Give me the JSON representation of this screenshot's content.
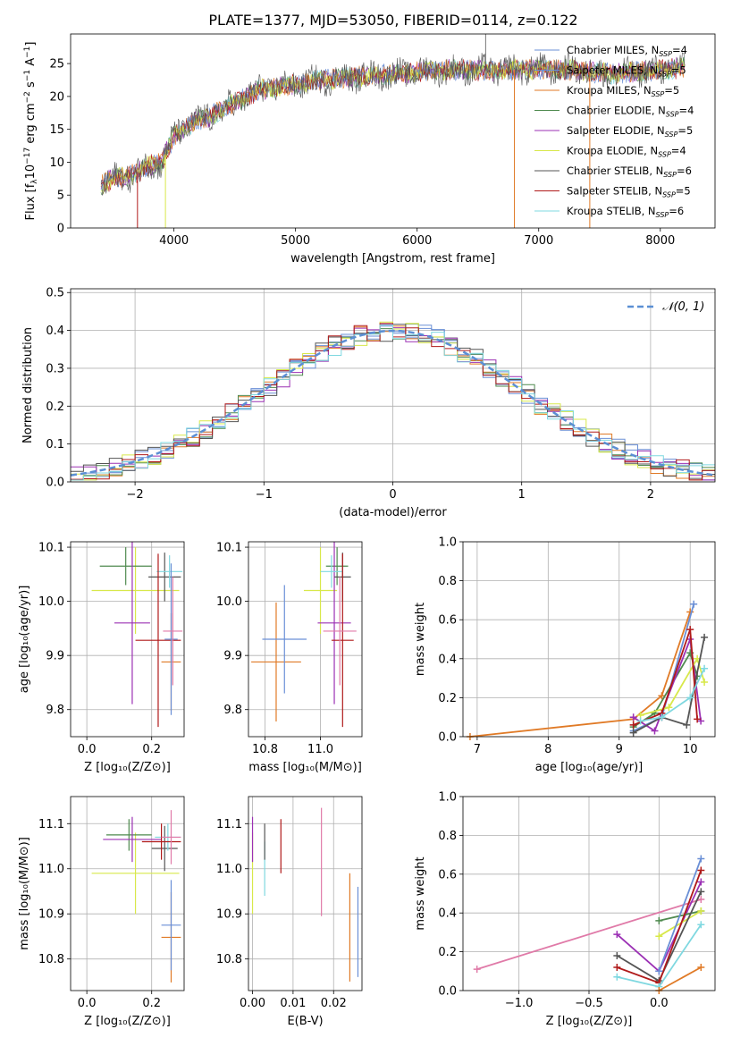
{
  "title": "PLATE=1377, MJD=53050, FIBERID=0114, z=0.122",
  "colors": {
    "Chabrier MILES": "#6a8fd6",
    "Salpeter MILES": "#6a8fd6",
    "Kroupa MILES": "#e07a26",
    "Chabrier ELODIE": "#4f8a4f",
    "Salpeter ELODIE": "#9b30b4",
    "Kroupa ELODIE": "#d8e84a",
    "Chabrier STELIB": "#555555",
    "Salpeter STELIB": "#b01a1a",
    "Kroupa STELIB": "#7fd8e0",
    "normal": "#5b8fd4",
    "pink": "#e07aa8",
    "grid": "#b0b0b0"
  },
  "chart_data": [
    {
      "type": "line",
      "id": "spectrum",
      "title": "PLATE=1377, MJD=53050, FIBERID=0114, z=0.122",
      "xlabel": "wavelength [Angstrom, rest frame]",
      "ylabel": "Flux [f_λ10^-17 erg cm^-2 s^-1 A^-1]",
      "ylabel_parts": [
        "Flux [f",
        "λ",
        "10",
        "−17",
        " erg cm",
        "−2",
        " s",
        "−1",
        " A",
        "−1",
        "]"
      ],
      "xlim": [
        3150,
        8450
      ],
      "ylim": [
        0,
        29.5
      ],
      "xticks": [
        4000,
        5000,
        6000,
        7000,
        8000
      ],
      "yticks": [
        0,
        5,
        10,
        15,
        20,
        25
      ],
      "grid": false,
      "legend_position": "top-right",
      "legend": [
        {
          "label": "Chabrier MILES, N",
          "sub": "SSP",
          "eq": "=4"
        },
        {
          "label": "Salpeter MILES, N",
          "sub": "SSP",
          "eq": "=5"
        },
        {
          "label": "Kroupa MILES, N",
          "sub": "SSP",
          "eq": "=5"
        },
        {
          "label": "Chabrier ELODIE, N",
          "sub": "SSP",
          "eq": "=4"
        },
        {
          "label": "Salpeter ELODIE, N",
          "sub": "SSP",
          "eq": "=5"
        },
        {
          "label": "Kroupa ELODIE, N",
          "sub": "SSP",
          "eq": "=4"
        },
        {
          "label": "Chabrier STELIB, N",
          "sub": "SSP",
          "eq": "=6"
        },
        {
          "label": "Salpeter STELIB, N",
          "sub": "SSP",
          "eq": "=5"
        },
        {
          "label": "Kroupa STELIB, N",
          "sub": "SSP",
          "eq": "=6"
        }
      ],
      "continuum": [
        [
          3400,
          6.5
        ],
        [
          3500,
          7.5
        ],
        [
          3650,
          8.0
        ],
        [
          3700,
          8.5
        ],
        [
          3800,
          9.5
        ],
        [
          3900,
          10.0
        ],
        [
          4000,
          14.0
        ],
        [
          4150,
          16.0
        ],
        [
          4300,
          17.0
        ],
        [
          4500,
          19.0
        ],
        [
          4700,
          21.0
        ],
        [
          5000,
          21.8
        ],
        [
          5200,
          22.5
        ],
        [
          5500,
          23.0
        ],
        [
          5900,
          23.5
        ],
        [
          6100,
          24.0
        ],
        [
          6400,
          24.0
        ],
        [
          6700,
          24.0
        ],
        [
          7000,
          24.2
        ],
        [
          7300,
          24.0
        ],
        [
          7600,
          23.5
        ],
        [
          8000,
          24.0
        ],
        [
          8200,
          24.5
        ]
      ],
      "dips": [
        [
          3700,
          0
        ],
        [
          3930,
          0
        ],
        [
          6800,
          0
        ],
        [
          7420,
          0
        ]
      ],
      "peak": [
        6563,
        29.5
      ]
    },
    {
      "type": "histogram",
      "id": "residuals",
      "xlabel": "(data-model)/error",
      "ylabel": "Normed distribution",
      "xlim": [
        -2.5,
        2.5
      ],
      "ylim": [
        0,
        0.51
      ],
      "xticks": [
        -2,
        -1,
        0,
        1,
        2
      ],
      "yticks": [
        0.0,
        0.1,
        0.2,
        0.3,
        0.4,
        0.5
      ],
      "grid": true,
      "legend_position": "top-right",
      "legend": [
        {
          "label": "𝒩(0, 1)"
        }
      ],
      "bin_width": 0.1
    },
    {
      "type": "scatter",
      "id": "age_vs_Z",
      "xlabel": "Z [log₁₀(Z/Z⊙)]",
      "ylabel": "age  [log₁₀(age/yr)]",
      "xlim": [
        -0.05,
        0.3
      ],
      "ylim": [
        9.75,
        10.11
      ],
      "xticks": [
        0.0,
        0.2
      ],
      "yticks": [
        9.8,
        9.9,
        10.0,
        10.1
      ],
      "grid": true,
      "points": [
        {
          "model": "Kroupa ELODIE",
          "x": 0.15,
          "xerr": 0.135,
          "y": 10.02,
          "yerr": 0.08
        },
        {
          "model": "Chabrier ELODIE",
          "x": 0.12,
          "xerr": 0.08,
          "y": 10.065,
          "yerr": 0.035
        },
        {
          "model": "Salpeter ELODIE",
          "x": 0.14,
          "xerr": 0.055,
          "y": 9.96,
          "yerr": 0.15
        },
        {
          "model": "Chabrier STELIB",
          "x": 0.24,
          "xerr": 0.05,
          "y": 10.045,
          "yerr": 0.045
        },
        {
          "model": "Kroupa STELIB",
          "x": 0.255,
          "xerr": 0.04,
          "y": 10.055,
          "yerr": 0.03
        },
        {
          "model": "Salpeter STELIB",
          "x": 0.22,
          "xerr": 0.07,
          "y": 9.928,
          "yerr": 0.16
        },
        {
          "model": "Kroupa MILES",
          "x": 0.26,
          "xerr": 0.03,
          "y": 9.888,
          "yerr": 0.09
        },
        {
          "model": "Chabrier MILES",
          "x": 0.26,
          "xerr": 0.02,
          "y": 9.93,
          "yerr": 0.14
        },
        {
          "model": "pink",
          "x": 0.265,
          "xerr": 0.03,
          "y": 9.945,
          "yerr": 0.1
        }
      ]
    },
    {
      "type": "scatter",
      "id": "age_vs_mass",
      "xlabel": "mass [log₁₀(M/M⊙)]",
      "ylabel": "",
      "xlim": [
        10.74,
        11.15
      ],
      "ylim": [
        9.75,
        10.11
      ],
      "xticks": [
        10.8,
        11.0
      ],
      "yticks": [
        9.8,
        9.9,
        10.0,
        10.1
      ],
      "grid": true,
      "points": [
        {
          "model": "Kroupa ELODIE",
          "x": 11.0,
          "xerr": 0.06,
          "y": 10.02,
          "yerr": 0.08
        },
        {
          "model": "Chabrier ELODIE",
          "x": 11.06,
          "xerr": 0.04,
          "y": 10.065,
          "yerr": 0.035
        },
        {
          "model": "Salpeter ELODIE",
          "x": 11.05,
          "xerr": 0.06,
          "y": 9.96,
          "yerr": 0.15
        },
        {
          "model": "Chabrier STELIB",
          "x": 11.08,
          "xerr": 0.03,
          "y": 10.045,
          "yerr": 0.045
        },
        {
          "model": "Kroupa STELIB",
          "x": 11.04,
          "xerr": 0.04,
          "y": 10.055,
          "yerr": 0.03
        },
        {
          "model": "Salpeter STELIB",
          "x": 11.08,
          "xerr": 0.04,
          "y": 9.928,
          "yerr": 0.16
        },
        {
          "model": "Kroupa MILES",
          "x": 10.84,
          "xerr": 0.09,
          "y": 9.888,
          "yerr": 0.11
        },
        {
          "model": "Chabrier MILES",
          "x": 10.87,
          "xerr": 0.08,
          "y": 9.93,
          "yerr": 0.1
        },
        {
          "model": "pink",
          "x": 11.07,
          "xerr": 0.06,
          "y": 9.945,
          "yerr": 0.1
        }
      ]
    },
    {
      "type": "line",
      "id": "massweight_vs_age",
      "xlabel": "age  [log₁₀(age/yr)]",
      "ylabel": "mass weight",
      "xlim": [
        6.8,
        10.35
      ],
      "ylim": [
        0,
        1.0
      ],
      "xticks": [
        7,
        8,
        9,
        10
      ],
      "yticks": [
        0.0,
        0.2,
        0.4,
        0.6,
        0.8,
        1.0
      ],
      "grid": true,
      "series": [
        {
          "model": "Kroupa MILES",
          "x": [
            6.9,
            9.2,
            9.6,
            10.0
          ],
          "y": [
            0.0,
            0.09,
            0.21,
            0.64
          ]
        },
        {
          "model": "Chabrier MILES",
          "x": [
            9.2,
            9.6,
            10.05
          ],
          "y": [
            0.03,
            0.1,
            0.68
          ]
        },
        {
          "model": "Chabrier ELODIE",
          "x": [
            9.2,
            9.5,
            10.0,
            10.1
          ],
          "y": [
            0.05,
            0.12,
            0.43,
            0.31
          ]
        },
        {
          "model": "Salpeter ELODIE",
          "x": [
            9.2,
            9.5,
            10.0,
            10.15
          ],
          "y": [
            0.1,
            0.03,
            0.5,
            0.08
          ]
        },
        {
          "model": "Kroupa ELODIE",
          "x": [
            9.3,
            9.7,
            10.1,
            10.2
          ],
          "y": [
            0.11,
            0.15,
            0.4,
            0.28
          ]
        },
        {
          "model": "Chabrier STELIB",
          "x": [
            9.2,
            9.6,
            9.95,
            10.2
          ],
          "y": [
            0.02,
            0.1,
            0.06,
            0.51
          ]
        },
        {
          "model": "Salpeter STELIB",
          "x": [
            9.2,
            9.6,
            10.0,
            10.1
          ],
          "y": [
            0.06,
            0.12,
            0.55,
            0.09
          ]
        },
        {
          "model": "Kroupa STELIB",
          "x": [
            9.3,
            9.6,
            10.0,
            10.2
          ],
          "y": [
            0.08,
            0.1,
            0.2,
            0.35
          ]
        }
      ]
    },
    {
      "type": "scatter",
      "id": "mass_vs_Z",
      "xlabel": "Z [log₁₀(Z/Z⊙)]",
      "ylabel": "mass [log₁₀(M/M⊙)]",
      "xlim": [
        -0.05,
        0.3
      ],
      "ylim": [
        10.73,
        11.16
      ],
      "xticks": [
        0.0,
        0.2
      ],
      "yticks": [
        10.8,
        10.9,
        11.0,
        11.1
      ],
      "grid": true,
      "points": [
        {
          "model": "Kroupa ELODIE",
          "x": 0.15,
          "xerr": 0.135,
          "y": 10.99,
          "yerr": 0.09
        },
        {
          "model": "Chabrier ELODIE",
          "x": 0.13,
          "xerr": 0.07,
          "y": 11.075,
          "yerr": 0.035
        },
        {
          "model": "Salpeter ELODIE",
          "x": 0.14,
          "xerr": 0.09,
          "y": 11.065,
          "yerr": 0.05
        },
        {
          "model": "Chabrier STELIB",
          "x": 0.24,
          "xerr": 0.04,
          "y": 11.045,
          "yerr": 0.05
        },
        {
          "model": "Kroupa STELIB",
          "x": 0.25,
          "xerr": 0.04,
          "y": 11.07,
          "yerr": 0.03
        },
        {
          "model": "Salpeter STELIB",
          "x": 0.23,
          "xerr": 0.06,
          "y": 11.06,
          "yerr": 0.04
        },
        {
          "model": "Kroupa MILES",
          "x": 0.26,
          "xerr": 0.03,
          "y": 10.848,
          "yerr": 0.1
        },
        {
          "model": "Chabrier MILES",
          "x": 0.26,
          "xerr": 0.03,
          "y": 10.875,
          "yerr": 0.1
        },
        {
          "model": "pink",
          "x": 0.26,
          "xerr": 0.03,
          "y": 11.07,
          "yerr": 0.06
        }
      ]
    },
    {
      "type": "scatter",
      "id": "mass_vs_ebv",
      "xlabel": "E(B-V)",
      "ylabel": "",
      "xlim": [
        -0.001,
        0.027
      ],
      "ylim": [
        10.73,
        11.16
      ],
      "xticks": [
        0.0,
        0.01,
        0.02
      ],
      "yticks": [
        10.8,
        10.9,
        11.0,
        11.1
      ],
      "grid": true,
      "points": [
        {
          "model": "Kroupa ELODIE",
          "x": 0.0,
          "y": 10.99,
          "yerr": 0.09
        },
        {
          "model": "Salpeter ELODIE",
          "x": 0.0,
          "y": 11.065,
          "yerr": 0.05
        },
        {
          "model": "Kroupa STELIB",
          "x": 0.003,
          "y": 11.0,
          "yerr": 0.06
        },
        {
          "model": "Chabrier STELIB",
          "x": 0.003,
          "y": 11.06,
          "yerr": 0.04
        },
        {
          "model": "Salpeter STELIB",
          "x": 0.007,
          "y": 11.05,
          "yerr": 0.06
        },
        {
          "model": "pink",
          "x": 0.017,
          "y": 11.015,
          "yerr": 0.12
        },
        {
          "model": "Kroupa MILES",
          "x": 0.024,
          "y": 10.87,
          "yerr": 0.12
        },
        {
          "model": "Chabrier MILES",
          "x": 0.026,
          "y": 10.86,
          "yerr": 0.1
        }
      ]
    },
    {
      "type": "line",
      "id": "massweight_vs_Z",
      "xlabel": "Z [log₁₀(Z/Z⊙)]",
      "ylabel": "mass weight",
      "xlim": [
        -1.4,
        0.4
      ],
      "ylim": [
        0,
        1.0
      ],
      "xticks": [
        -1.0,
        -0.5,
        0.0
      ],
      "yticks": [
        0.0,
        0.2,
        0.4,
        0.6,
        0.8,
        1.0
      ],
      "grid": true,
      "series": [
        {
          "model": "pink",
          "x": [
            -1.3,
            0.3
          ],
          "y": [
            0.11,
            0.47
          ]
        },
        {
          "model": "Salpeter ELODIE",
          "x": [
            -0.3,
            0.0,
            0.3
          ],
          "y": [
            0.29,
            0.1,
            0.56
          ]
        },
        {
          "model": "Chabrier ELODIE",
          "x": [
            0.0,
            0.3
          ],
          "y": [
            0.36,
            0.41
          ]
        },
        {
          "model": "Kroupa ELODIE",
          "x": [
            0.0,
            0.3
          ],
          "y": [
            0.28,
            0.41
          ]
        },
        {
          "model": "Chabrier STELIB",
          "x": [
            -0.3,
            0.0,
            0.3
          ],
          "y": [
            0.18,
            0.05,
            0.51
          ]
        },
        {
          "model": "Salpeter STELIB",
          "x": [
            -0.3,
            0.0,
            0.3
          ],
          "y": [
            0.12,
            0.04,
            0.62
          ]
        },
        {
          "model": "Kroupa STELIB",
          "x": [
            -0.3,
            0.0,
            0.3
          ],
          "y": [
            0.07,
            0.02,
            0.34
          ]
        },
        {
          "model": "Chabrier MILES",
          "x": [
            0.0,
            0.3
          ],
          "y": [
            0.1,
            0.68
          ]
        },
        {
          "model": "Kroupa MILES",
          "x": [
            0.0,
            0.3
          ],
          "y": [
            0.0,
            0.12
          ]
        }
      ]
    }
  ]
}
